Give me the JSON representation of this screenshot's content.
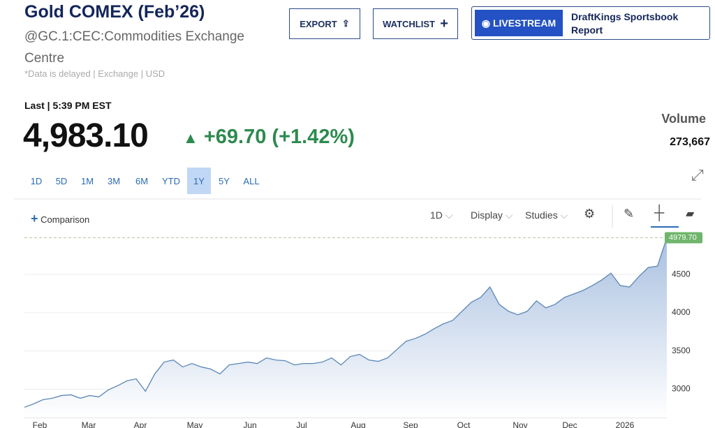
{
  "header": {
    "title": "Gold COMEX (Feb’26)",
    "symbol": "@GC.1:CEC:Commodities Exchange Centre",
    "disclaimer": "*Data is delayed | Exchange | USD"
  },
  "buttons": {
    "export": "EXPORT",
    "watchlist": "WATCHLIST",
    "livestream": "LIVESTREAM",
    "promo": "DraftKings Sportsbook Report"
  },
  "quote": {
    "last_label": "Last | 5:39 PM EST",
    "price": "4,983.10",
    "change": "+69.70 (+1.42%)",
    "volume_label": "Volume",
    "volume": "273,667"
  },
  "ranges": [
    "1D",
    "5D",
    "1M",
    "3M",
    "6M",
    "YTD",
    "1Y",
    "5Y",
    "ALL"
  ],
  "selected_range": "1Y",
  "toolbar": {
    "comparison": "Comparison",
    "interval": "1D",
    "display": "Display",
    "studies": "Studies"
  },
  "chart": {
    "type": "line",
    "color": "#5b87b8",
    "categories": [
      "Feb",
      "Mar",
      "Apr",
      "May",
      "Jun",
      "Jul",
      "Aug",
      "Sep",
      "Oct",
      "Nov",
      "Dec",
      "2026"
    ],
    "values": [
      2764,
      2809,
      2864,
      2882,
      2918,
      2927,
      2882,
      2918,
      2900,
      2991,
      3045,
      3109,
      3136,
      2973,
      3200,
      3355,
      3382,
      3291,
      3336,
      3291,
      3264,
      3200,
      3318,
      3336,
      3355,
      3336,
      3409,
      3382,
      3373,
      3318,
      3336,
      3336,
      3355,
      3409,
      3318,
      3427,
      3455,
      3382,
      3364,
      3409,
      3518,
      3627,
      3664,
      3718,
      3791,
      3855,
      3900,
      4018,
      4136,
      4200,
      4336,
      4109,
      4018,
      3973,
      4018,
      4155,
      4064,
      4109,
      4200,
      4245,
      4291,
      4355,
      4427,
      4518,
      4355,
      4336,
      4473,
      4591,
      4609,
      4979.7
    ],
    "last_value_label": "4979.70",
    "ylim": [
      2630,
      5030
    ],
    "yticks": [
      3000,
      3500,
      4000,
      4500
    ],
    "grid": true
  }
}
